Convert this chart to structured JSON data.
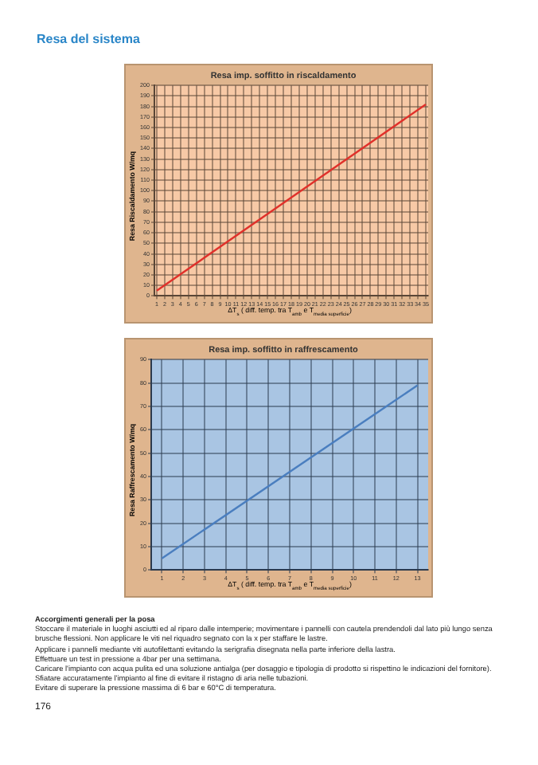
{
  "chart_data": [
    {
      "type": "line",
      "title": "Resa imp. soffitto in riscaldamento",
      "xlabel": "ΔT$_{s}$ ( diff. temp. tra T$_{amb}$ e T$_{media superficie}$)",
      "ylabel": "Resa Riscaldamento W/mq",
      "annotations": [
        "Resa del sistema"
      ],
      "x": [
        1,
        35
      ],
      "xlim": [
        0.7,
        35.3
      ],
      "xticks": [
        1,
        2,
        3,
        4,
        5,
        6,
        7,
        8,
        9,
        10,
        11,
        12,
        13,
        14,
        15,
        16,
        17,
        18,
        19,
        20,
        21,
        22,
        23,
        24,
        25,
        26,
        27,
        28,
        29,
        30,
        31,
        32,
        33,
        34,
        35
      ],
      "ylim": [
        0,
        200
      ],
      "yticks": [
        0,
        10,
        20,
        30,
        40,
        50,
        60,
        70,
        80,
        90,
        100,
        110,
        120,
        130,
        140,
        150,
        160,
        170,
        180,
        190,
        200
      ],
      "series": [
        {
          "color": "#e0302a",
          "values": [
            5,
            182
          ]
        }
      ],
      "grid": true,
      "legend": false,
      "marker": "none",
      "line_style": "solid"
    },
    {
      "type": "line",
      "title": "Resa imp. soffitto in raffrescamento",
      "xlabel": "ΔT$_{s}$ ( diff. temp. tra T$_{amb}$ e T$_{media superficie}$)",
      "ylabel": "Resa Raffrescamento W/mq",
      "annotations": [
        "Accorgimenti generali per la posa",
        "Stoccare il materiale in luoghi asciutti ed al riparo dalle intemperie; movimentare i pannelli con cautela prendendoli dal lato più lungo senza brusche flessioni. Non applicare le viti nel riquadro segnato con la x per staffare le lastre.",
        "Applicare i pannelli mediante viti autofilettanti evitando la serigrafia disegnata nella parte inferiore della lastra.",
        "Effettuare un test in pressione a 4bar per una settimana.",
        "Caricare l'impianto con acqua pulita ed una soluzione antialga (per dosaggio e tipologia di prodotto si rispettino le indicazioni del fornitore).",
        "Sfiatare accuratamente l'impianto al fine di evitare il ristagno di aria nelle tubazioni.",
        "Evitare di superare la pressione massima di 6 bar e 60°C di temperatura.",
        "176"
      ],
      "x": [
        1,
        13
      ],
      "xlim": [
        0.5,
        13.5
      ],
      "xticks": [
        1,
        2,
        3,
        4,
        5,
        6,
        7,
        8,
        9,
        10,
        11,
        12,
        13
      ],
      "ylim": [
        0,
        90
      ],
      "yticks": [
        0,
        10,
        20,
        30,
        40,
        50,
        60,
        70,
        80,
        90
      ],
      "series": [
        {
          "color": "#4a7ebf",
          "values": [
            5,
            79
          ]
        }
      ],
      "grid": true,
      "legend": false,
      "marker": "none",
      "line_style": "solid"
    }
  ]
}
